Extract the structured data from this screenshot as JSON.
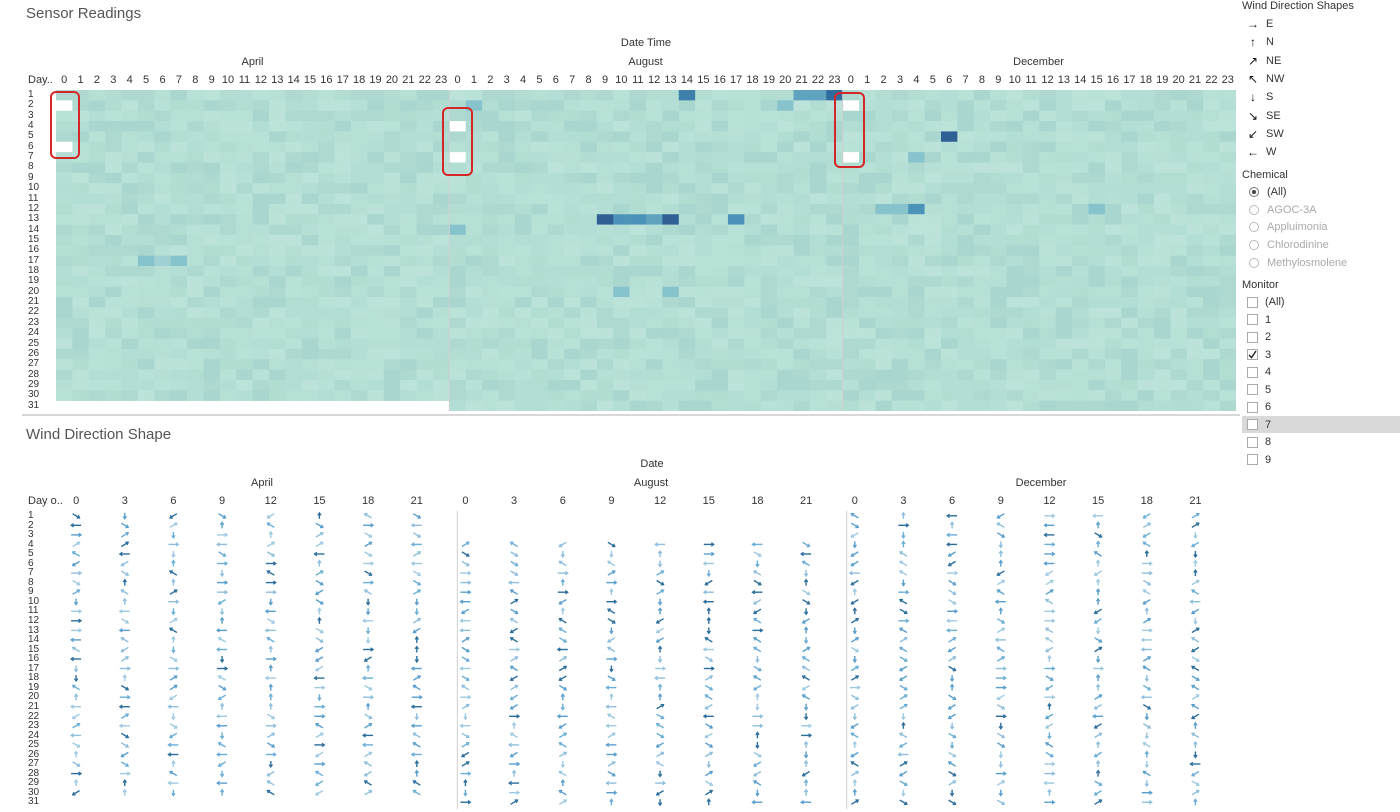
{
  "sensor": {
    "title": "Sensor Readings",
    "top_header": "Date Time",
    "day_header": "Day..",
    "months": [
      "April",
      "August",
      "December"
    ],
    "hours": [
      "0",
      "1",
      "2",
      "3",
      "4",
      "5",
      "6",
      "7",
      "8",
      "9",
      "10",
      "11",
      "12",
      "13",
      "14",
      "15",
      "16",
      "17",
      "18",
      "19",
      "20",
      "21",
      "22",
      "23"
    ],
    "days": [
      "1",
      "2",
      "3",
      "4",
      "5",
      "6",
      "7",
      "8",
      "9",
      "10",
      "11",
      "12",
      "13",
      "14",
      "15",
      "16",
      "17",
      "18",
      "19",
      "20",
      "21",
      "22",
      "23",
      "24",
      "25",
      "26",
      "27",
      "28",
      "29",
      "30",
      "31"
    ],
    "colors": {
      "base": "#b3dfd4",
      "light": "#bfe6dc",
      "mid": "#86c3cc",
      "dark": "#2f6d9e",
      "highlight": "#d62728"
    }
  },
  "wind": {
    "title": "Wind Direction Shape",
    "top_header": "Date",
    "day_header": "Day o..",
    "months": [
      "April",
      "August",
      "December"
    ],
    "hour_ticks": [
      "0",
      "3",
      "6",
      "9",
      "12",
      "15",
      "18",
      "21"
    ],
    "days": [
      "1",
      "2",
      "3",
      "4",
      "5",
      "6",
      "7",
      "8",
      "9",
      "10",
      "11",
      "12",
      "13",
      "14",
      "15",
      "16",
      "17",
      "18",
      "19",
      "20",
      "21",
      "22",
      "23",
      "24",
      "25",
      "26",
      "27",
      "28",
      "29",
      "30",
      "31"
    ],
    "colors": {
      "light": "#9ecae1",
      "mid": "#6baed6",
      "dark": "#2c6e9b"
    }
  },
  "legend": {
    "title": "Wind Direction Shapes",
    "items": [
      {
        "sym": "→",
        "label": "E"
      },
      {
        "sym": "↑",
        "label": "N"
      },
      {
        "sym": "↗",
        "label": "NE"
      },
      {
        "sym": "↖",
        "label": "NW"
      },
      {
        "sym": "↓",
        "label": "S"
      },
      {
        "sym": "↘",
        "label": "SE"
      },
      {
        "sym": "↙",
        "label": "SW"
      },
      {
        "sym": "←",
        "label": "W"
      }
    ]
  },
  "chemical": {
    "title": "Chemical",
    "options": [
      "(All)",
      "AGOC-3A",
      "Appluimonia",
      "Chlorodinine",
      "Methylosmolene"
    ],
    "selected": "(All)"
  },
  "monitor": {
    "title": "Monitor",
    "options": [
      "(All)",
      "1",
      "2",
      "3",
      "4",
      "5",
      "6",
      "7",
      "8",
      "9"
    ],
    "checked": [
      "3"
    ],
    "hovered": "7"
  }
}
